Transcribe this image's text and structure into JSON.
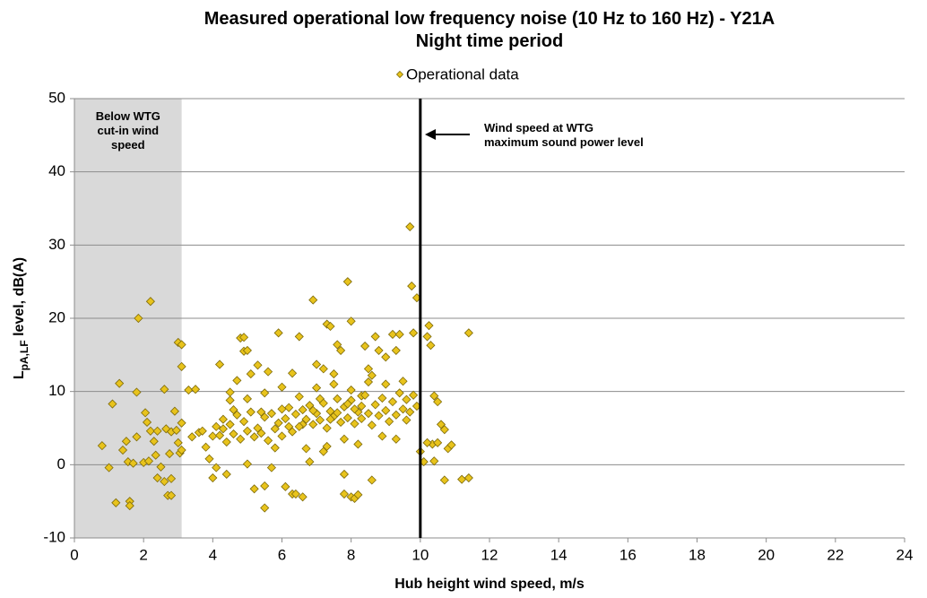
{
  "chart_data": {
    "type": "scatter",
    "title": "Measured operational low frequency noise (10 Hz to 160 Hz) - Y21A",
    "subtitle": "Night time period",
    "x_label": "Hub height wind speed, m/s",
    "y_label": {
      "main": "L",
      "subscript": "pA,LF",
      "rest": " level, dB(A)"
    },
    "xlim": [
      0,
      24
    ],
    "xticks": [
      0,
      2,
      4,
      6,
      8,
      10,
      12,
      14,
      16,
      18,
      20,
      22,
      24
    ],
    "ylim": [
      -10,
      50
    ],
    "yticks": [
      -10,
      0,
      10,
      20,
      30,
      40,
      50
    ],
    "grid": true,
    "legend": "top",
    "region": {
      "x": [
        0,
        3.1
      ],
      "color": "#d9d9d9",
      "label": [
        "Below WTG",
        "cut-in wind",
        "speed"
      ]
    },
    "vline": {
      "x": 10,
      "color": "#000000",
      "label": [
        "Wind speed at WTG",
        "maximum sound power level"
      ]
    },
    "x": [
      0.8,
      1.0,
      1.1,
      1.2,
      1.3,
      1.4,
      1.5,
      1.55,
      1.6,
      1.6,
      1.7,
      1.8,
      1.85,
      1.8,
      2.0,
      2.05,
      2.1,
      2.15,
      2.2,
      2.2,
      2.3,
      2.35,
      2.4,
      2.4,
      2.5,
      2.6,
      2.6,
      2.65,
      2.7,
      2.75,
      2.8,
      2.8,
      2.8,
      2.9,
      3.0,
      3.05,
      3.1,
      3.1,
      3.1,
      3.1,
      3.0,
      2.95,
      3.3,
      3.5,
      3.4,
      3.6,
      3.8,
      3.9,
      4.0,
      4.1,
      4.2,
      4.3,
      4.4,
      4.5,
      4.6,
      4.7,
      4.8,
      4.9,
      4.9,
      5.0,
      5.0,
      5.1,
      5.2,
      5.3,
      5.4,
      5.5,
      5.5,
      5.6,
      5.7,
      5.8,
      5.9,
      6.0,
      6.1,
      6.2,
      6.3,
      6.4,
      6.5,
      6.6,
      6.6,
      6.8,
      6.9,
      7.0,
      7.1,
      7.2,
      7.3,
      7.4,
      7.5,
      7.6,
      7.7,
      7.8,
      7.8,
      7.9,
      8.0,
      8.0,
      8.1,
      8.2,
      8.3,
      8.4,
      8.5,
      8.6,
      8.7,
      8.8,
      9.0,
      9.2,
      9.3,
      9.4,
      9.5,
      9.6,
      9.7,
      9.75,
      9.8,
      9.9,
      10.0,
      10.1,
      10.2,
      10.25,
      10.3,
      10.35,
      10.4,
      10.5,
      10.6,
      10.7,
      10.7,
      10.8,
      10.9,
      11.2,
      11.4,
      11.4,
      10.5,
      10.2,
      10.4,
      4.0,
      4.1,
      4.2,
      4.3,
      4.4,
      4.5,
      4.6,
      4.7,
      4.8,
      4.9,
      5.0,
      5.1,
      5.2,
      5.3,
      5.4,
      5.5,
      5.6,
      5.7,
      5.8,
      5.9,
      6.0,
      6.1,
      6.2,
      6.3,
      6.4,
      6.5,
      6.6,
      6.7,
      6.8,
      6.9,
      7.0,
      7.1,
      7.2,
      7.3,
      7.4,
      7.5,
      7.6,
      7.7,
      7.8,
      7.9,
      8.0,
      8.1,
      8.2,
      8.3,
      8.4,
      8.5,
      8.6,
      8.7,
      8.8,
      8.9,
      9.0,
      9.1,
      9.2,
      9.3,
      9.4,
      9.5,
      9.6,
      9.7,
      9.8,
      9.9,
      7.0,
      7.5,
      8.0,
      8.5,
      7.8,
      8.2,
      7.3,
      6.7,
      8.9,
      9.3,
      5.0,
      5.5,
      6.0,
      6.5,
      4.5,
      3.7,
      6.3,
      7.2,
      8.6,
      9.0,
      7.6,
      8.1,
      7.9,
      8.3,
      7.4,
      6.9
    ],
    "series": [
      {
        "name": "Operational data",
        "color": "#e8c31c",
        "values": [
          2.6,
          -0.4,
          8.3,
          -5.2,
          11.1,
          2.0,
          3.2,
          0.4,
          -5.0,
          -5.6,
          0.2,
          9.9,
          20,
          3.8,
          0.3,
          7.1,
          5.8,
          0.5,
          22.3,
          4.6,
          3.2,
          1.3,
          -1.8,
          4.6,
          -0.3,
          10.3,
          -2.3,
          4.9,
          -4.2,
          1.5,
          -4.2,
          4.5,
          -1.9,
          7.3,
          16.7,
          1.6,
          2.0,
          16.4,
          13.4,
          5.7,
          3.0,
          4.7,
          10.2,
          10.3,
          3.8,
          4.4,
          2.4,
          0.8,
          -1.8,
          -0.4,
          13.7,
          4.9,
          -1.3,
          9.9,
          7.5,
          11.5,
          17.3,
          17.4,
          15.5,
          15.6,
          0.1,
          12.4,
          -3.3,
          13.6,
          7.2,
          -5.9,
          -2.9,
          12.7,
          -0.4,
          2.3,
          18.0,
          7.6,
          -3.0,
          5.2,
          -4.0,
          -4.0,
          17.5,
          -4.4,
          5.5,
          0.4,
          22.5,
          13.7,
          9.0,
          1.8,
          19.2,
          18.9,
          12.4,
          16.4,
          15.6,
          -1.3,
          -4.0,
          25.0,
          19.6,
          -4.4,
          -4.6,
          -4.1,
          9.4,
          16.2,
          13.1,
          -2.1,
          17.5,
          15.6,
          14.7,
          17.8,
          15.6,
          17.8,
          11.4,
          6.1,
          32.5,
          24.4,
          18.0,
          22.8,
          1.8,
          0.4,
          17.5,
          19.0,
          16.3,
          2.8,
          9.4,
          8.6,
          5.5,
          -2.1,
          4.8,
          2.2,
          2.7,
          -2.0,
          -1.8,
          18.0,
          3.0,
          3.0,
          0.5,
          3.9,
          5.2,
          4.0,
          6.2,
          3.1,
          5.5,
          4.2,
          6.8,
          3.5,
          5.9,
          4.6,
          7.2,
          3.8,
          5.0,
          4.3,
          6.5,
          3.3,
          7.0,
          4.9,
          5.7,
          3.9,
          6.3,
          7.8,
          4.5,
          6.9,
          5.2,
          7.5,
          6.2,
          8.1,
          5.5,
          7.0,
          6.1,
          8.4,
          5.0,
          7.3,
          6.6,
          9.0,
          5.8,
          7.9,
          6.4,
          8.8,
          5.6,
          7.2,
          6.3,
          9.5,
          7.0,
          5.4,
          8.2,
          6.7,
          9.1,
          7.4,
          5.9,
          8.6,
          6.8,
          9.8,
          7.6,
          8.9,
          7.2,
          9.5,
          8.0,
          10.5,
          11.0,
          10.2,
          11.3,
          3.5,
          2.8,
          2.5,
          2.2,
          3.9,
          3.5,
          9.0,
          9.8,
          10.6,
          9.3,
          8.8,
          4.6,
          12.5,
          13.1,
          12.2,
          11.0,
          7.1,
          7.6,
          8.3,
          8.0,
          6.2,
          7.4
        ]
      }
    ]
  }
}
